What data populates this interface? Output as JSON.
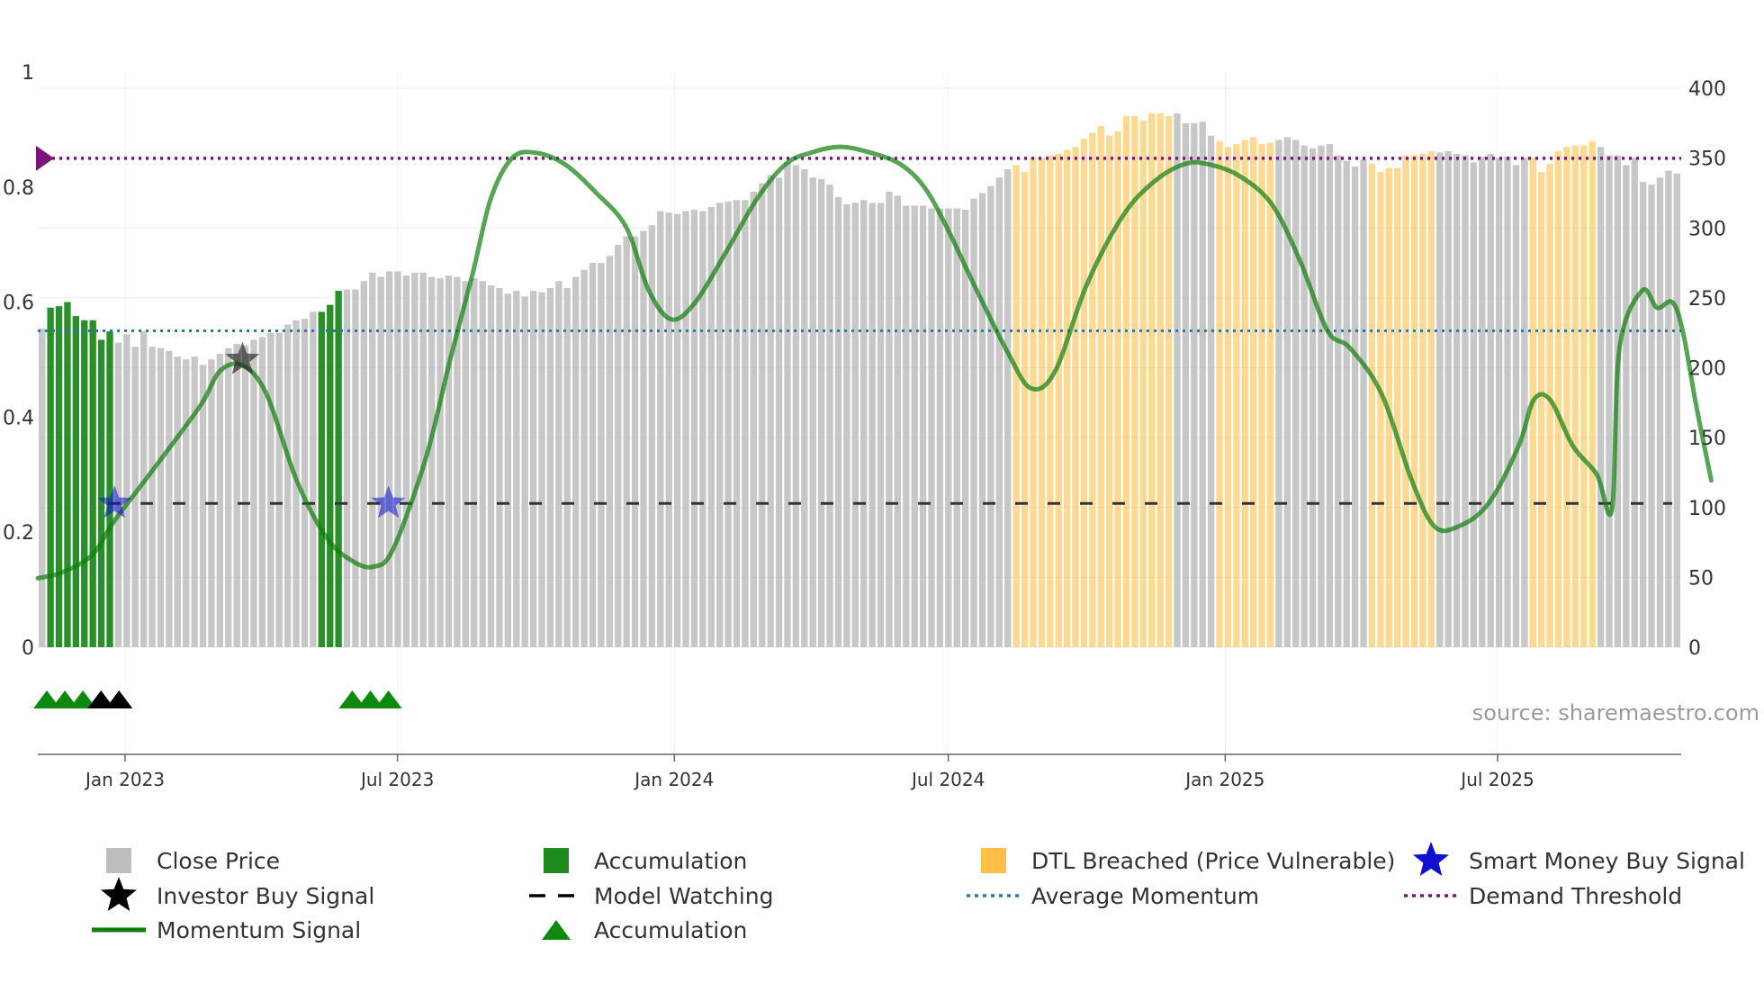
{
  "chart_data": {
    "type": "bar",
    "title": "",
    "source_text": "source: sharemaestro.com",
    "colors": {
      "close_price": "#bdbdbd",
      "accumulation_bar": "#1e8a1e",
      "dtl_breached": "#ffbf47",
      "momentum": "#0d7f0d",
      "average_momentum": "#2c77b0",
      "demand_threshold": "#7b147b",
      "model_watching": "#333333",
      "smart_money": "#1010d0",
      "investor_buy": "#222222",
      "accumulation_marker": "#0d8a0d"
    },
    "left_axis": {
      "ylim": [
        0,
        1
      ],
      "ticks": [
        "0",
        "0.2",
        "0.4",
        "0.6",
        "0.8",
        "1"
      ]
    },
    "right_axis": {
      "ylim": [
        0,
        400
      ],
      "ticks": [
        "0",
        "50",
        "100",
        "150",
        "200",
        "250",
        "300",
        "350",
        "400"
      ]
    },
    "x_axis": {
      "start": "2022-11-04",
      "end": "2025-10-31",
      "ticks": [
        {
          "label": "Jan 2023",
          "date": "2023-01-01"
        },
        {
          "label": "Jul 2023",
          "date": "2023-07-01"
        },
        {
          "label": "Jan 2024",
          "date": "2024-01-01"
        },
        {
          "label": "Jul 2024",
          "date": "2024-07-01"
        },
        {
          "label": "Jan 2025",
          "date": "2025-01-01"
        },
        {
          "label": "Jul 2025",
          "date": "2025-07-01"
        }
      ]
    },
    "close_price": [
      228,
      243,
      244,
      247,
      237,
      234,
      234,
      220,
      226,
      218,
      224,
      215,
      226,
      215,
      214,
      212,
      208,
      206,
      208,
      202,
      206,
      210,
      214,
      217,
      216,
      220,
      222,
      225,
      225,
      231,
      234,
      235,
      240,
      240,
      245,
      255,
      256,
      256,
      262,
      268,
      265,
      269,
      269,
      266,
      268,
      268,
      265,
      264,
      266,
      265,
      262,
      264,
      262,
      259,
      257,
      253,
      255,
      251,
      255,
      254,
      257,
      262,
      257,
      265,
      270,
      275,
      275,
      280,
      288,
      294,
      294,
      298,
      302,
      312,
      311,
      310,
      312,
      313,
      312,
      315,
      318,
      319,
      320,
      320,
      326,
      332,
      338,
      336,
      347,
      345,
      342,
      336,
      335,
      331,
      322,
      317,
      318,
      320,
      318,
      318,
      326,
      323,
      316,
      316,
      316,
      314,
      314,
      314,
      314,
      313,
      321,
      325,
      330,
      336,
      342,
      345,
      340,
      350,
      350,
      352,
      353,
      356,
      358,
      364,
      368,
      373,
      366,
      369,
      380,
      380,
      377,
      382,
      382,
      380,
      382,
      375,
      375,
      376,
      366,
      362,
      358,
      360,
      363,
      365,
      360,
      361,
      363,
      365,
      363,
      359,
      357,
      359,
      360,
      352,
      348,
      344,
      349,
      346,
      340,
      343,
      343,
      352,
      352,
      353,
      355,
      354,
      355,
      353,
      352,
      347,
      351,
      353,
      350,
      351,
      345,
      350,
      350,
      340,
      346,
      355,
      358,
      359,
      359,
      362,
      358,
      352,
      352,
      345,
      350,
      333,
      331,
      336,
      341,
      339
    ],
    "close_price_category": "ggggggggggggggggggggggggggggggggggggggggggggggggggggggggggggggggggggggggggggggggggggggggggggggggggggggggggggggggggggggggggggggggggggggggggggggggggggggggggggggggggggggggggggggggggggggggggggggggggggggg",
    "bar_categories": [
      {
        "range": [
          1,
          8
        ],
        "category": "accumulation"
      },
      {
        "range": [
          33,
          35
        ],
        "category": "accumulation"
      },
      {
        "range": [
          115,
          133
        ],
        "category": "dtl"
      },
      {
        "range": [
          139,
          145
        ],
        "category": "dtl"
      },
      {
        "range": [
          157,
          164
        ],
        "category": "dtl"
      },
      {
        "range": [
          176,
          183
        ],
        "category": "dtl"
      }
    ],
    "momentum_signal": {
      "points": [
        [
          "2022-11-04",
          0.12
        ],
        [
          "2022-11-20",
          0.13
        ],
        [
          "2022-12-10",
          0.16
        ],
        [
          "2022-12-25",
          0.22
        ],
        [
          "2023-01-20",
          0.31
        ],
        [
          "2023-02-20",
          0.42
        ],
        [
          "2023-03-05",
          0.48
        ],
        [
          "2023-03-20",
          0.49
        ],
        [
          "2023-04-05",
          0.44
        ],
        [
          "2023-04-25",
          0.29
        ],
        [
          "2023-05-15",
          0.19
        ],
        [
          "2023-06-01",
          0.15
        ],
        [
          "2023-06-15",
          0.14
        ],
        [
          "2023-06-28",
          0.17
        ],
        [
          "2023-07-20",
          0.33
        ],
        [
          "2023-08-05",
          0.5
        ],
        [
          "2023-08-20",
          0.65
        ],
        [
          "2023-09-01",
          0.78
        ],
        [
          "2023-09-15",
          0.85
        ],
        [
          "2023-09-30",
          0.86
        ],
        [
          "2023-10-20",
          0.84
        ],
        [
          "2023-11-10",
          0.79
        ],
        [
          "2023-11-30",
          0.73
        ],
        [
          "2023-12-15",
          0.62
        ],
        [
          "2023-12-30",
          0.57
        ],
        [
          "2024-01-15",
          0.6
        ],
        [
          "2024-02-05",
          0.69
        ],
        [
          "2024-02-25",
          0.78
        ],
        [
          "2024-03-15",
          0.84
        ],
        [
          "2024-04-01",
          0.86
        ],
        [
          "2024-04-20",
          0.87
        ],
        [
          "2024-05-10",
          0.86
        ],
        [
          "2024-05-30",
          0.84
        ],
        [
          "2024-06-15",
          0.8
        ],
        [
          "2024-06-30",
          0.73
        ],
        [
          "2024-07-20",
          0.62
        ],
        [
          "2024-08-10",
          0.51
        ],
        [
          "2024-08-25",
          0.45
        ],
        [
          "2024-09-10",
          0.48
        ],
        [
          "2024-10-01",
          0.63
        ],
        [
          "2024-10-25",
          0.75
        ],
        [
          "2024-11-15",
          0.81
        ],
        [
          "2024-12-05",
          0.84
        ],
        [
          "2024-12-20",
          0.84
        ],
        [
          "2025-01-10",
          0.82
        ],
        [
          "2025-02-01",
          0.77
        ],
        [
          "2025-02-20",
          0.67
        ],
        [
          "2025-03-10",
          0.55
        ],
        [
          "2025-03-25",
          0.52
        ],
        [
          "2025-04-15",
          0.44
        ],
        [
          "2025-05-05",
          0.29
        ],
        [
          "2025-05-20",
          0.21
        ],
        [
          "2025-06-05",
          0.21
        ],
        [
          "2025-06-25",
          0.25
        ],
        [
          "2025-07-15",
          0.35
        ],
        [
          "2025-07-25",
          0.43
        ],
        [
          "2025-08-05",
          0.43
        ],
        [
          "2025-08-20",
          0.35
        ],
        [
          "2025-09-05",
          0.3
        ],
        [
          "2025-09-15",
          0.24
        ],
        [
          "2025-09-20",
          0.52
        ],
        [
          "2025-10-05",
          0.62
        ],
        [
          "2025-10-15",
          0.59
        ],
        [
          "2025-10-25",
          0.6
        ],
        [
          "2025-11-01",
          0.55
        ],
        [
          "2025-11-10",
          0.42
        ],
        [
          "2025-11-20",
          0.29
        ]
      ]
    },
    "average_momentum": 0.55,
    "demand_threshold": 0.85,
    "model_watching_level": 0.25,
    "smart_money_buy_signals": [
      {
        "date": "2022-12-25",
        "value": 0.25
      },
      {
        "date": "2023-06-25",
        "value": 0.25
      }
    ],
    "investor_buy_signals": [
      {
        "date": "2023-03-20",
        "value": 0.5
      }
    ],
    "accumulation_markers": [
      {
        "date": "2022-11-10",
        "color": "green"
      },
      {
        "date": "2022-11-22",
        "color": "green"
      },
      {
        "date": "2022-12-04",
        "color": "green"
      },
      {
        "date": "2022-12-16",
        "color": "black"
      },
      {
        "date": "2022-12-28",
        "color": "black"
      },
      {
        "date": "2023-06-01",
        "color": "green"
      },
      {
        "date": "2023-06-13",
        "color": "green"
      },
      {
        "date": "2023-06-25",
        "color": "green"
      }
    ],
    "legend": [
      {
        "label": "Close Price",
        "symbol": "square-grey"
      },
      {
        "label": "Accumulation",
        "symbol": "square-green"
      },
      {
        "label": "DTL Breached (Price Vulnerable)",
        "symbol": "square-orange"
      },
      {
        "label": "Smart Money Buy Signal",
        "symbol": "star-blue"
      },
      {
        "label": "Investor Buy Signal",
        "symbol": "star-black"
      },
      {
        "label": "Model Watching",
        "symbol": "dash-black"
      },
      {
        "label": "Average Momentum",
        "symbol": "dot-blue"
      },
      {
        "label": "Demand Threshold",
        "symbol": "dot-purple"
      },
      {
        "label": "Momentum Signal",
        "symbol": "line-green"
      },
      {
        "label": "Accumulation",
        "symbol": "triangle-green"
      }
    ]
  }
}
